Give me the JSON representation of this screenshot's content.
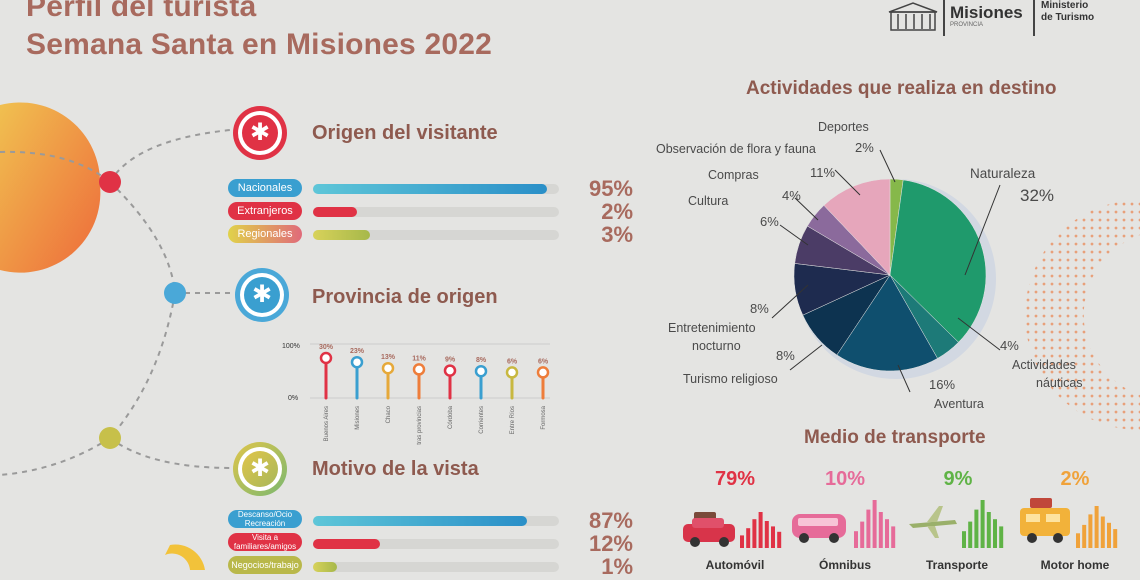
{
  "header": {
    "title_line1": "Perfil del turista",
    "title_line2": "Semana Santa en Misiones 2022",
    "logo_misiones": "Misiones",
    "logo_provincia": "PROVINCIA",
    "logo_ministerio_1": "Ministerio",
    "logo_ministerio_2": "de Turismo"
  },
  "origen": {
    "title": "Origen del visitante",
    "rows": [
      {
        "label": "Nacionales",
        "pct": "95%",
        "value": 95,
        "color": "#3a9fd0"
      },
      {
        "label": "Extranjeros",
        "pct": "2%",
        "value": 2,
        "color": "#e03245"
      },
      {
        "label": "Regionales",
        "pct": "3%",
        "value": 3,
        "color": "#b9b84a"
      }
    ]
  },
  "provincia": {
    "title": "Provincia de origen",
    "axis_top": "100%",
    "axis_bottom": "0%",
    "items": [
      {
        "label": "Buenos Aires",
        "pct": "30%",
        "value": 30,
        "color": "#e03245"
      },
      {
        "label": "Misiones",
        "pct": "23%",
        "value": 23,
        "color": "#3a9fd0"
      },
      {
        "label": "Chaco",
        "pct": "13%",
        "value": 13,
        "color": "#e6a93a"
      },
      {
        "label": "Otras provincias",
        "pct": "11%",
        "value": 11,
        "color": "#ee7d3a"
      },
      {
        "label": "Córdoba",
        "pct": "9%",
        "value": 9,
        "color": "#e03245"
      },
      {
        "label": "Corrientes",
        "pct": "8%",
        "value": 8,
        "color": "#3a9fd0"
      },
      {
        "label": "Entre Ríos",
        "pct": "6%",
        "value": 6,
        "color": "#c8b840"
      },
      {
        "label": "Formosa",
        "pct": "6%",
        "value": 6,
        "color": "#ee7d3a"
      }
    ]
  },
  "motivo": {
    "title": "Motivo de la vista",
    "rows": [
      {
        "label1": "Descanso/Ocio",
        "label2": "Recreación",
        "pct": "87%",
        "value": 87,
        "color": "#3a9fd0"
      },
      {
        "label1": "Visita a",
        "label2": "familiares/amigos",
        "pct": "12%",
        "value": 12,
        "color": "#e03245"
      },
      {
        "label1": "Negocios/trabajo",
        "label2": "",
        "pct": "1%",
        "value": 1,
        "color": "#b9b84a"
      }
    ]
  },
  "actividades": {
    "title": "Actividades que realiza en destino",
    "chart_data": {
      "type": "pie",
      "title": "Actividades que realiza en destino",
      "slices": [
        {
          "label": "Deportes",
          "pct": "2%",
          "value": 2,
          "color": "#86b84a"
        },
        {
          "label": "Naturaleza",
          "pct": "32%",
          "value": 32,
          "color": "#1f9a6c"
        },
        {
          "label": "Actividades náuticas",
          "pct": "4%",
          "value": 4,
          "color": "#1d7a78"
        },
        {
          "label": "Aventura",
          "pct": "16%",
          "value": 16,
          "color": "#0f4f6e"
        },
        {
          "label": "Turismo religioso",
          "pct": "8%",
          "value": 8,
          "color": "#0d3350"
        },
        {
          "label": "Entretenimiento nocturno",
          "pct": "8%",
          "value": 8,
          "color": "#1e2b4f"
        },
        {
          "label": "Cultura",
          "pct": "6%",
          "value": 6,
          "color": "#4b3c66"
        },
        {
          "label": "Compras",
          "pct": "4%",
          "value": 4,
          "color": "#8b6a9c"
        },
        {
          "label": "Observación de flora y fauna",
          "pct": "11%",
          "value": 11,
          "color": "#e6a6bb"
        }
      ]
    },
    "labels": {
      "deportes": "Deportes",
      "deportes_pct": "2%",
      "flora": "Observación de flora y fauna",
      "flora_pct": "11%",
      "compras": "Compras",
      "compras_pct": "4%",
      "cultura": "Cultura",
      "cultura_pct": "6%",
      "naturaleza": "Naturaleza",
      "naturaleza_pct": "32%",
      "entret_pct": "8%",
      "entret_1": "Entretenimiento",
      "entret_2": "nocturno",
      "religioso_pct": "8%",
      "religioso": "Turismo religioso",
      "aventura_pct": "16%",
      "aventura": "Aventura",
      "nauticas_pct": "4%",
      "nauticas_1": "Actividades",
      "nauticas_2": "náuticas"
    }
  },
  "transporte": {
    "title": "Medio de transporte",
    "items": [
      {
        "label": "Automóvil",
        "pct": "79%",
        "value": 79,
        "color": "#e03245",
        "icon": "car-icon"
      },
      {
        "label": "Ómnibus",
        "pct": "10%",
        "value": 10,
        "color": "#e66b99",
        "icon": "bus-icon"
      },
      {
        "label": "Transporte",
        "pct": "9%",
        "value": 9,
        "color": "#5fb346",
        "icon": "plane-icon"
      },
      {
        "label": "Motor home",
        "pct": "2%",
        "value": 2,
        "color": "#f0a23a",
        "icon": "motorhome-icon"
      }
    ]
  }
}
